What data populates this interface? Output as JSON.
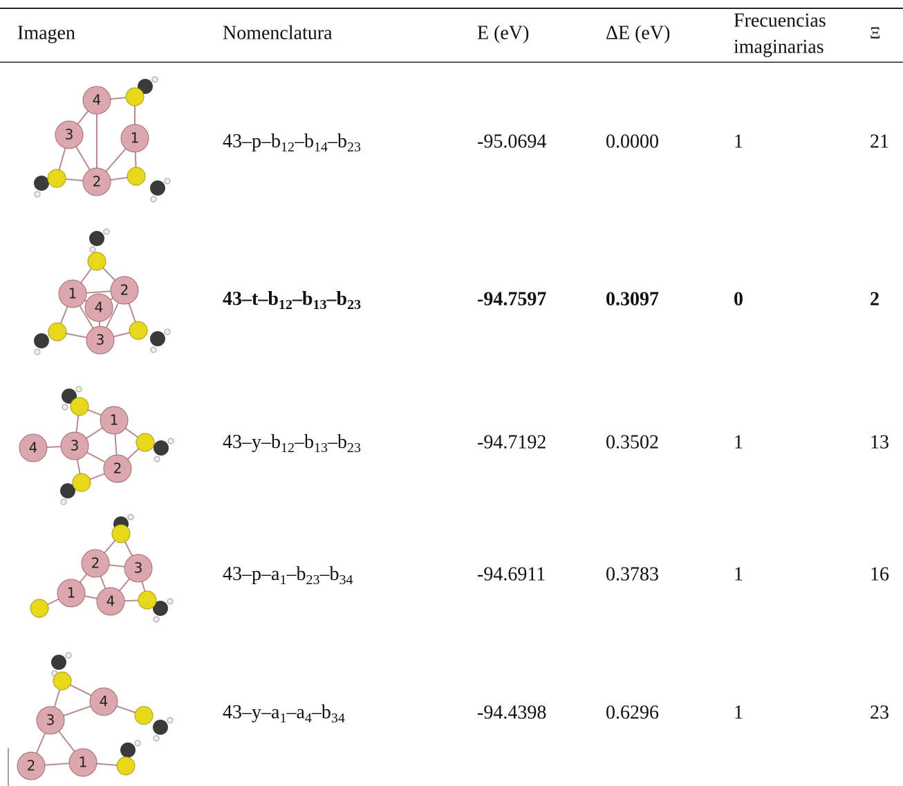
{
  "table": {
    "header": [
      "Imagen",
      "Nomenclatura",
      "E (eV)",
      "ΔE (eV)",
      [
        "Frecuencias",
        "imaginarias"
      ],
      "Ξ"
    ],
    "rows": [
      {
        "atoms": [
          "4",
          "3",
          "1",
          "2"
        ],
        "nomenclature": [
          "43–p–b",
          "12",
          "–b",
          "14",
          "–b",
          "23"
        ],
        "energy": "-95.0694",
        "delta": "0.0000",
        "imaginary": "1",
        "xi": "21"
      },
      {
        "atoms": [
          "1",
          "2",
          "4",
          "3"
        ],
        "nomenclature": [
          "43–t–b",
          "12",
          "–b",
          "13",
          "–b",
          "23"
        ],
        "energy": "-94.7597",
        "delta": "0.3097",
        "imaginary": "0",
        "xi": "2",
        "bold": true
      },
      {
        "atoms": [
          "4",
          "3",
          "1",
          "2"
        ],
        "nomenclature": [
          "43–y–b",
          "12",
          "–b",
          "13",
          "–b",
          "23"
        ],
        "energy": "-94.7192",
        "delta": "0.3502",
        "imaginary": "1",
        "xi": "13"
      },
      {
        "atoms": [
          "2",
          "3",
          "1",
          "4"
        ],
        "nomenclature": [
          "43–p–a",
          "1",
          "–b",
          "23",
          "–b",
          "34"
        ],
        "energy": "-94.6911",
        "delta": "0.3783",
        "imaginary": "1",
        "xi": "16"
      },
      {
        "atoms": [
          "3",
          "4",
          "2",
          "1"
        ],
        "nomenclature": [
          "43–y–a",
          "1",
          "–a",
          "4",
          "–b",
          "34"
        ],
        "energy": "-94.4398",
        "delta": "0.6296",
        "imaginary": "1",
        "xi": "23"
      }
    ]
  }
}
